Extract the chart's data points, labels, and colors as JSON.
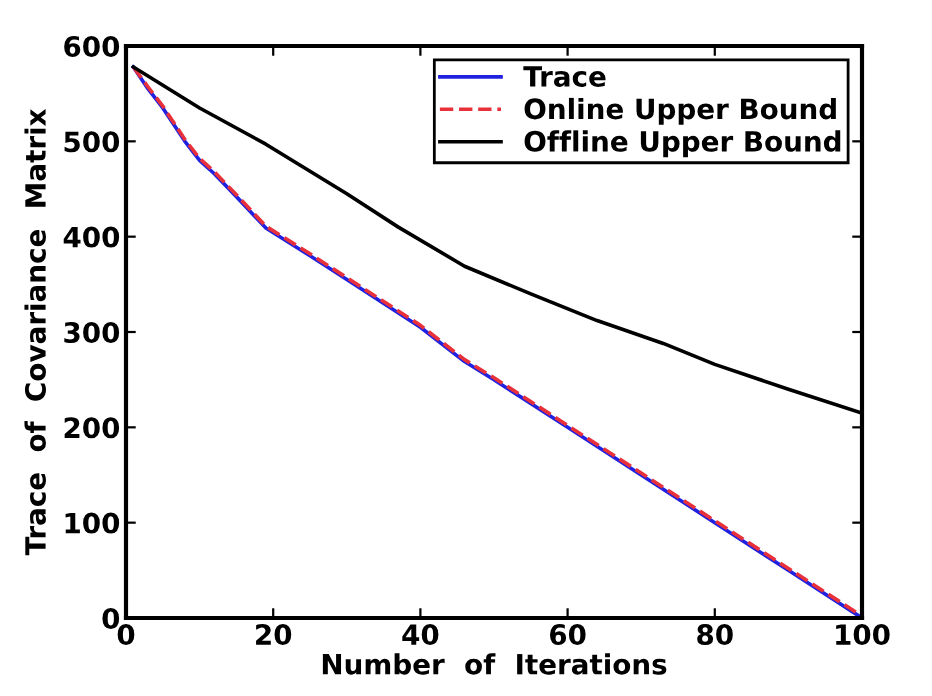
{
  "chart_data": {
    "type": "line",
    "xlabel": "Number  of  Iterations",
    "ylabel": "Trace  of  Covariance  Matrix",
    "xlim": [
      0,
      100
    ],
    "ylim": [
      0,
      600
    ],
    "xticks": [
      0,
      20,
      40,
      60,
      80,
      100
    ],
    "yticks": [
      0,
      100,
      200,
      300,
      400,
      500,
      600
    ],
    "grid": false,
    "legend": "top right",
    "series": [
      {
        "name": "Trace",
        "color": "#2020e0",
        "line_style": "solid",
        "x": [
          1,
          3,
          5,
          8,
          10,
          12,
          15,
          19,
          25,
          30,
          40,
          46,
          50,
          60,
          70,
          80,
          90,
          100
        ],
        "values": [
          578,
          555,
          535,
          500,
          480,
          466,
          442,
          409,
          380,
          355,
          305,
          269,
          250,
          200,
          150,
          100,
          50,
          0
        ]
      },
      {
        "name": "Online Upper Bound",
        "color": "#e8303a",
        "line_style": "dashed",
        "x": [
          1,
          3,
          5,
          8,
          10,
          12,
          15,
          19,
          25,
          30,
          40,
          46,
          50,
          60,
          70,
          80,
          90,
          100
        ],
        "values": [
          578,
          557,
          537,
          502,
          482,
          468,
          444,
          411,
          382,
          357,
          307,
          271,
          252,
          202,
          152,
          102,
          52,
          2
        ]
      },
      {
        "name": "Offline Upper Bound",
        "color": "#000000",
        "line_style": "solid",
        "x": [
          1,
          10,
          19,
          30,
          37,
          46,
          55,
          64,
          73,
          80,
          90,
          100
        ],
        "values": [
          578,
          535,
          497,
          445,
          410,
          369,
          340,
          312,
          288,
          266,
          240,
          215
        ]
      }
    ]
  }
}
